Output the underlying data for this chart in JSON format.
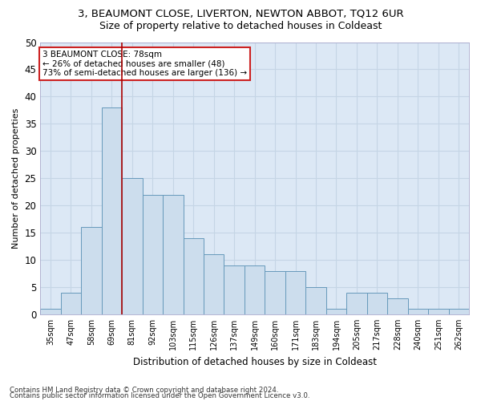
{
  "title": "3, BEAUMONT CLOSE, LIVERTON, NEWTON ABBOT, TQ12 6UR",
  "subtitle": "Size of property relative to detached houses in Coldeast",
  "xlabel": "Distribution of detached houses by size in Coldeast",
  "ylabel": "Number of detached properties",
  "bar_labels": [
    "35sqm",
    "47sqm",
    "58sqm",
    "69sqm",
    "81sqm",
    "92sqm",
    "103sqm",
    "115sqm",
    "126sqm",
    "137sqm",
    "149sqm",
    "160sqm",
    "171sqm",
    "183sqm",
    "194sqm",
    "205sqm",
    "217sqm",
    "228sqm",
    "240sqm",
    "251sqm",
    "262sqm"
  ],
  "bar_values": [
    1,
    4,
    16,
    38,
    25,
    22,
    22,
    14,
    11,
    9,
    9,
    8,
    8,
    5,
    1,
    4,
    4,
    3,
    1,
    1,
    1
  ],
  "bar_color": "#ccdded",
  "bar_edge_color": "#6699bb",
  "vline_x": 3.5,
  "vline_color": "#aa0000",
  "ylim": [
    0,
    50
  ],
  "yticks": [
    0,
    5,
    10,
    15,
    20,
    25,
    30,
    35,
    40,
    45,
    50
  ],
  "annotation_title": "3 BEAUMONT CLOSE: 78sqm",
  "annotation_line1": "← 26% of detached houses are smaller (48)",
  "annotation_line2": "73% of semi-detached houses are larger (136) →",
  "annotation_box_facecolor": "#ffffff",
  "annotation_box_edgecolor": "#cc2222",
  "plot_bg_color": "#dce8f5",
  "grid_color": "#c5d5e5",
  "title_fontsize": 9.5,
  "subtitle_fontsize": 9,
  "footer1": "Contains HM Land Registry data © Crown copyright and database right 2024.",
  "footer2": "Contains public sector information licensed under the Open Government Licence v3.0."
}
